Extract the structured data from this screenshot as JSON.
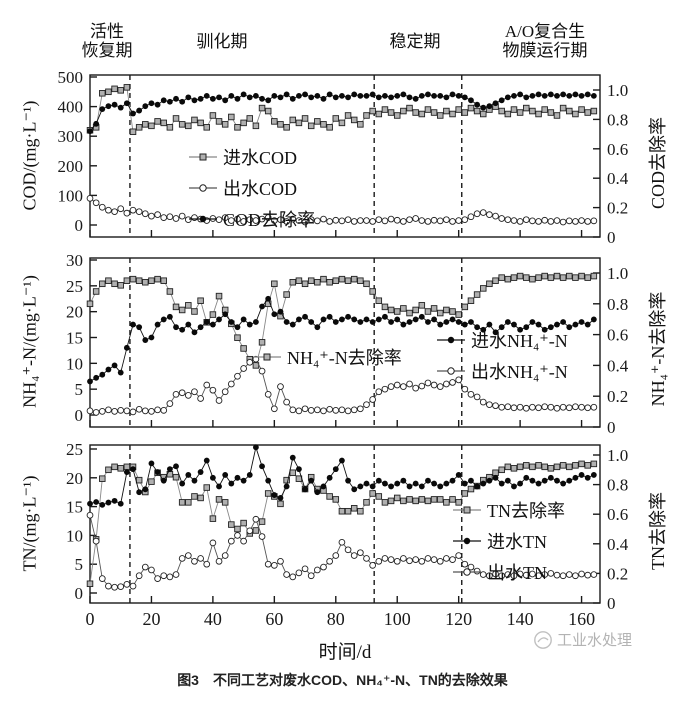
{
  "phases": {
    "boundaries_days": [
      13,
      92.5,
      121
    ],
    "labels": [
      {
        "text": "活性\n恢复期"
      },
      {
        "text": "驯化期"
      },
      {
        "text": "稳定期"
      },
      {
        "text": "A/O复合生\n物膜运行期"
      }
    ]
  },
  "axes": {
    "x_label": "时间/d",
    "x_ticks": [
      "0",
      "20",
      "40",
      "60",
      "80",
      "100",
      "120",
      "140",
      "160"
    ],
    "x_max_days": 166
  },
  "caption": "图3　不同工艺对废水COD、NH₄⁺-N、TN的去除效果",
  "watermark": "工业水处理",
  "style": {
    "ink": "#1a1a1a",
    "square_fill": "#b0b0b0",
    "square_line": "#888888",
    "open_line": "#555555",
    "filled_line": "#111111",
    "open_fill": "#ffffff",
    "filled_fill": "#0a0a0a"
  },
  "chart_data": [
    {
      "type": "scatter",
      "panel": "COD",
      "ylabel_left": "COD/(mg·L⁻¹)",
      "ylabel_right": "COD去除率",
      "ylim_left": [
        0,
        500
      ],
      "ylim_right": [
        0,
        1.0
      ],
      "yticks_left": [
        "0",
        "100",
        "200",
        "300",
        "400",
        "500"
      ],
      "yticks_right": [
        "0",
        "0.2",
        "0.4",
        "0.6",
        "0.8",
        "1.0"
      ],
      "x_start": 0,
      "x_step": 2,
      "series": [
        {
          "name": "进水COD",
          "axis": "left",
          "marker": "square-gray",
          "values": [
            320,
            330,
            445,
            450,
            460,
            455,
            465,
            315,
            330,
            340,
            335,
            350,
            345,
            330,
            360,
            340,
            335,
            355,
            345,
            330,
            370,
            350,
            340,
            365,
            330,
            345,
            360,
            335,
            395,
            385,
            350,
            340,
            330,
            355,
            345,
            360,
            335,
            350,
            340,
            330,
            360,
            345,
            370,
            355,
            340,
            370,
            385,
            375,
            390,
            380,
            370,
            385,
            395,
            380,
            375,
            390,
            380,
            370,
            385,
            375,
            390,
            380,
            395,
            385,
            375,
            390,
            400,
            385,
            375,
            390,
            380,
            395,
            385,
            375,
            390,
            380,
            370,
            395,
            385,
            375,
            390,
            380,
            385
          ]
        },
        {
          "name": "出水COD",
          "axis": "left",
          "marker": "circle-open",
          "values": [
            90,
            75,
            60,
            50,
            45,
            55,
            40,
            50,
            45,
            38,
            30,
            35,
            25,
            28,
            22,
            30,
            18,
            25,
            20,
            15,
            22,
            18,
            25,
            15,
            20,
            12,
            18,
            15,
            20,
            25,
            15,
            18,
            12,
            20,
            15,
            10,
            18,
            14,
            20,
            12,
            16,
            14,
            18,
            12,
            15,
            15,
            12,
            18,
            14,
            20,
            16,
            12,
            18,
            22,
            15,
            12,
            16,
            14,
            18,
            12,
            15,
            18,
            28,
            38,
            42,
            35,
            30,
            22,
            18,
            15,
            12,
            18,
            14,
            12,
            16,
            12,
            15,
            10,
            14,
            12,
            15,
            12,
            14
          ]
        },
        {
          "name": "COD去除率",
          "axis": "right",
          "marker": "circle-filled",
          "values": [
            0.72,
            0.77,
            0.87,
            0.89,
            0.9,
            0.88,
            0.91,
            0.84,
            0.86,
            0.89,
            0.91,
            0.9,
            0.93,
            0.92,
            0.94,
            0.92,
            0.95,
            0.93,
            0.94,
            0.96,
            0.94,
            0.95,
            0.93,
            0.96,
            0.94,
            0.97,
            0.95,
            0.96,
            0.94,
            0.93,
            0.96,
            0.95,
            0.97,
            0.94,
            0.96,
            0.97,
            0.95,
            0.96,
            0.94,
            0.97,
            0.95,
            0.96,
            0.95,
            0.97,
            0.96,
            0.96,
            0.97,
            0.95,
            0.96,
            0.95,
            0.96,
            0.97,
            0.95,
            0.94,
            0.96,
            0.97,
            0.96,
            0.96,
            0.95,
            0.97,
            0.96,
            0.95,
            0.93,
            0.9,
            0.88,
            0.89,
            0.91,
            0.93,
            0.95,
            0.96,
            0.97,
            0.95,
            0.96,
            0.97,
            0.96,
            0.97,
            0.96,
            0.97,
            0.96,
            0.97,
            0.96,
            0.97,
            0.96
          ]
        }
      ]
    },
    {
      "type": "scatter",
      "panel": "NH4-N",
      "ylabel_left": "NH₄⁺-N/(mg·L⁻¹)",
      "ylabel_right": "NH₄⁺-N去除率",
      "ylim_left": [
        0,
        30
      ],
      "ylim_right": [
        0,
        1.0
      ],
      "yticks_left": [
        "0",
        "5",
        "10",
        "15",
        "20",
        "25",
        "30"
      ],
      "yticks_right": [
        "0",
        "0.2",
        "0.4",
        "0.6",
        "0.8",
        "1.0"
      ],
      "x_start": 0,
      "x_step": 2,
      "series": [
        {
          "name": "NH₄⁺-N去除率",
          "axis": "right",
          "marker": "square-gray",
          "values": [
            0.8,
            0.88,
            0.93,
            0.95,
            0.93,
            0.92,
            0.95,
            0.96,
            0.95,
            0.94,
            0.95,
            0.96,
            0.95,
            0.88,
            0.78,
            0.76,
            0.79,
            0.75,
            0.82,
            0.68,
            0.73,
            0.85,
            0.76,
            0.67,
            0.58,
            0.51,
            0.44,
            0.4,
            0.55,
            0.8,
            0.93,
            0.72,
            0.86,
            0.94,
            0.95,
            0.93,
            0.95,
            0.94,
            0.96,
            0.94,
            0.95,
            0.96,
            0.95,
            0.96,
            0.95,
            0.93,
            0.88,
            0.82,
            0.78,
            0.76,
            0.75,
            0.77,
            0.74,
            0.76,
            0.79,
            0.75,
            0.77,
            0.74,
            0.76,
            0.75,
            0.73,
            0.78,
            0.82,
            0.86,
            0.9,
            0.93,
            0.95,
            0.97,
            0.96,
            0.97,
            0.98,
            0.97,
            0.96,
            0.97,
            0.98,
            0.97,
            0.98,
            0.97,
            0.98,
            0.97,
            0.98,
            0.97,
            0.98
          ]
        },
        {
          "name": "进水NH₄⁺-N",
          "axis": "left",
          "marker": "circle-filled",
          "values": [
            6.5,
            7.2,
            7.8,
            8.8,
            9.6,
            8.2,
            13.0,
            17.5,
            17.0,
            14.5,
            15.0,
            17.5,
            18.5,
            19.0,
            17.0,
            16.5,
            17.5,
            16.0,
            17.0,
            18.0,
            17.5,
            18.5,
            19.5,
            18.0,
            17.0,
            18.5,
            17.5,
            18.0,
            21.0,
            22.5,
            19.5,
            20.0,
            18.0,
            17.5,
            18.5,
            19.0,
            18.0,
            17.0,
            18.5,
            19.0,
            18.0,
            18.5,
            19.0,
            18.5,
            18.0,
            18.5,
            18.0,
            18.5,
            19.0,
            18.0,
            18.5,
            17.5,
            18.0,
            18.5,
            19.0,
            18.0,
            18.5,
            17.5,
            18.0,
            18.5,
            18.0,
            17.5,
            18.0,
            17.0,
            16.5,
            17.5,
            16.0,
            17.0,
            18.0,
            17.5,
            16.5,
            17.0,
            18.0,
            17.5,
            16.5,
            17.0,
            17.5,
            18.0,
            17.0,
            17.5,
            18.0,
            17.5,
            18.5
          ]
        },
        {
          "name": "出水NH₄⁺-N",
          "axis": "left",
          "marker": "circle-open",
          "values": [
            0.8,
            0.5,
            0.7,
            1.0,
            0.7,
            0.9,
            0.8,
            0.6,
            1.1,
            0.8,
            0.7,
            1.0,
            0.9,
            2.2,
            4.0,
            4.3,
            3.8,
            4.5,
            3.2,
            5.8,
            4.8,
            2.8,
            4.5,
            6.0,
            7.5,
            9.0,
            10.2,
            10.8,
            8.5,
            4.0,
            1.2,
            5.5,
            2.5,
            1.0,
            0.8,
            1.2,
            0.9,
            1.0,
            0.8,
            1.1,
            0.9,
            1.0,
            0.8,
            1.0,
            1.2,
            2.0,
            3.0,
            4.5,
            5.0,
            5.5,
            5.8,
            5.5,
            6.0,
            5.2,
            5.6,
            6.2,
            5.8,
            5.5,
            6.0,
            6.3,
            6.8,
            5.0,
            4.0,
            3.5,
            2.5,
            2.0,
            1.8,
            1.5,
            1.6,
            1.4,
            1.5,
            1.3,
            1.5,
            1.4,
            1.6,
            1.5,
            1.3,
            1.5,
            1.4,
            1.6,
            1.5,
            1.4,
            1.5
          ]
        }
      ]
    },
    {
      "type": "scatter",
      "panel": "TN",
      "ylabel_left": "TN/(mg·L⁻¹)",
      "ylabel_right": "TN去除率",
      "ylim_left": [
        0,
        25
      ],
      "ylim_right": [
        0,
        1.0
      ],
      "yticks_left": [
        "0",
        "5",
        "10",
        "15",
        "20",
        "25"
      ],
      "yticks_right": [
        "0",
        "0.2",
        "0.4",
        "0.6",
        "0.8",
        "1.0"
      ],
      "x_start": 0,
      "x_step": 2,
      "series": [
        {
          "name": "TN去除率",
          "axis": "right",
          "marker": "square-gray",
          "values": [
            0.13,
            0.43,
            0.84,
            0.9,
            0.92,
            0.91,
            0.92,
            0.92,
            0.83,
            0.75,
            0.82,
            0.88,
            0.85,
            0.87,
            0.85,
            0.68,
            0.68,
            0.72,
            0.71,
            0.78,
            0.57,
            0.7,
            0.68,
            0.53,
            0.5,
            0.54,
            0.47,
            0.49,
            0.55,
            0.74,
            0.72,
            0.67,
            0.83,
            0.88,
            0.84,
            0.77,
            0.85,
            0.77,
            0.76,
            0.72,
            0.7,
            0.62,
            0.62,
            0.64,
            0.62,
            0.68,
            0.74,
            0.72,
            0.68,
            0.69,
            0.71,
            0.69,
            0.7,
            0.69,
            0.7,
            0.69,
            0.7,
            0.7,
            0.68,
            0.7,
            0.68,
            0.74,
            0.77,
            0.79,
            0.83,
            0.85,
            0.88,
            0.9,
            0.92,
            0.91,
            0.92,
            0.93,
            0.92,
            0.93,
            0.92,
            0.91,
            0.92,
            0.93,
            0.92,
            0.93,
            0.94,
            0.93,
            0.94
          ]
        },
        {
          "name": "进水TN",
          "axis": "left",
          "marker": "circle-filled",
          "values": [
            15.5,
            15.8,
            15.3,
            15.7,
            16.0,
            15.5,
            21.0,
            21.5,
            17.5,
            18.0,
            22.5,
            21.0,
            19.5,
            21.5,
            22.0,
            19.0,
            20.5,
            19.5,
            21.0,
            23.0,
            20.0,
            18.5,
            20.5,
            19.0,
            20.0,
            19.5,
            20.5,
            25.3,
            22.0,
            19.5,
            17.0,
            16.5,
            18.5,
            23.5,
            21.5,
            18.0,
            19.5,
            17.5,
            18.5,
            20.0,
            21.5,
            23.0,
            19.5,
            18.0,
            18.5,
            19.0,
            18.5,
            19.5,
            19.0,
            18.5,
            19.0,
            19.5,
            18.5,
            19.0,
            18.5,
            19.5,
            19.0,
            18.5,
            19.0,
            19.5,
            20.5,
            19.0,
            19.5,
            18.5,
            19.0,
            19.5,
            20.0,
            19.0,
            19.5,
            18.5,
            19.0,
            20.0,
            19.5,
            19.0,
            19.5,
            20.0,
            19.5,
            19.0,
            19.5,
            20.0,
            20.5,
            20.0,
            20.5
          ]
        },
        {
          "name": "出水TN",
          "axis": "left",
          "marker": "circle-open",
          "values": [
            13.5,
            9.0,
            2.5,
            1.2,
            1.0,
            1.1,
            1.5,
            1.2,
            3.0,
            4.5,
            4.0,
            2.5,
            3.0,
            2.8,
            3.2,
            6.0,
            6.5,
            5.5,
            6.0,
            5.0,
            8.7,
            5.5,
            6.5,
            9.0,
            10.0,
            9.0,
            10.8,
            12.8,
            9.8,
            5.0,
            4.8,
            5.5,
            3.2,
            2.8,
            3.5,
            4.2,
            3.0,
            4.0,
            4.5,
            5.5,
            6.5,
            8.8,
            7.5,
            6.5,
            7.0,
            6.0,
            4.8,
            5.5,
            6.0,
            5.8,
            5.5,
            6.0,
            5.6,
            5.8,
            5.5,
            6.0,
            5.8,
            5.5,
            6.0,
            5.8,
            6.5,
            5.0,
            4.5,
            3.8,
            3.2,
            3.0,
            3.3,
            3.0,
            3.2,
            3.0,
            3.3,
            3.1,
            3.3,
            3.0,
            3.2,
            3.4,
            3.1,
            3.0,
            3.2,
            3.0,
            3.3,
            3.1,
            3.2
          ]
        }
      ]
    }
  ]
}
